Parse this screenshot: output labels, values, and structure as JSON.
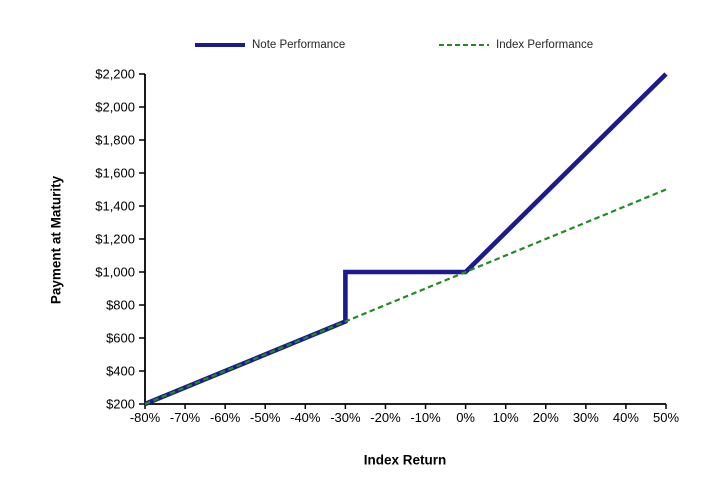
{
  "chart_data": {
    "type": "line",
    "title": "",
    "xlabel": "Index Return",
    "ylabel": "Payment at Maturity",
    "xlim": [
      -80,
      50
    ],
    "ylim": [
      200,
      2200
    ],
    "grid": false,
    "legend_position": "top",
    "x_ticks": [
      -80,
      -70,
      -60,
      -50,
      -40,
      -30,
      -20,
      -10,
      0,
      10,
      20,
      30,
      40,
      50
    ],
    "x_tick_labels": [
      "-80%",
      "-70%",
      "-60%",
      "-50%",
      "-40%",
      "-30%",
      "-20%",
      "-10%",
      "0%",
      "10%",
      "20%",
      "30%",
      "40%",
      "50%"
    ],
    "y_ticks": [
      200,
      400,
      600,
      800,
      1000,
      1200,
      1400,
      1600,
      1800,
      2000,
      2200
    ],
    "y_tick_labels": [
      "$200",
      "$400",
      "$600",
      "$800",
      "$1,000",
      "$1,200",
      "$1,400",
      "$1,600",
      "$1,800",
      "$2,000",
      "$2,200"
    ],
    "axis_color": "#000000",
    "series": [
      {
        "name": "Note Performance",
        "color": "#1b1b8f",
        "style": "solid",
        "width": 4.6,
        "points": [
          [
            -80,
            200
          ],
          [
            -30,
            700
          ],
          [
            -30,
            1000
          ],
          [
            0,
            1000
          ],
          [
            50,
            2200
          ]
        ]
      },
      {
        "name": "Index Performance",
        "color": "#228b22",
        "style": "dashed",
        "width": 2.2,
        "points": [
          [
            -80,
            200
          ],
          [
            50,
            1500
          ]
        ]
      }
    ]
  }
}
